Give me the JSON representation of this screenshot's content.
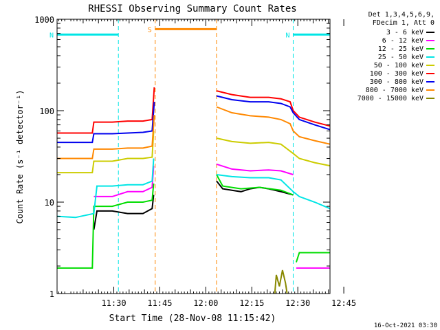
{
  "chart_data": {
    "type": "line",
    "title": "RHESSI Observing Summary Count Rates",
    "xlabel": "Start Time (28-Nov-08 11:15:42)",
    "ylabel": "Count Rate (s⁻¹ detector⁻¹)",
    "yscale": "log",
    "ylim": [
      1,
      1000
    ],
    "xlim_minutes": [
      11.5,
      100.5
    ],
    "x_tick_labels": [
      "11:30",
      "11:45",
      "12:00",
      "12:15",
      "12:30",
      "12:45"
    ],
    "x_tick_minutes": [
      30,
      45,
      60,
      75,
      90,
      105
    ],
    "y_tick_labels": [
      "1",
      "10",
      "100",
      "1000"
    ],
    "y_tick_values": [
      1,
      10,
      100,
      1000
    ],
    "footer_date": "16-Oct-2021 03:30",
    "legend": {
      "header": [
        "Det 1,3,4,5,6,9,",
        "FDecim 1, Att 0"
      ],
      "entries": [
        {
          "label": "3 - 6 keV",
          "color": "#000000"
        },
        {
          "label": "6 - 12 keV",
          "color": "#ff00ff"
        },
        {
          "label": "12 - 25 keV",
          "color": "#00dd00"
        },
        {
          "label": "25 - 50 keV",
          "color": "#00e5e5"
        },
        {
          "label": "50 - 100 keV",
          "color": "#cccc00"
        },
        {
          "label": "100 - 300 keV",
          "color": "#ff0000"
        },
        {
          "label": "300 - 800 keV",
          "color": "#0000ee"
        },
        {
          "label": "800 - 7000 keV",
          "color": "#ff8800"
        },
        {
          "label": "7000 - 15000 keV",
          "color": "#888800"
        }
      ]
    },
    "markers": [
      {
        "label": "N",
        "color": "#00e5e5",
        "start": 11.5,
        "end": 31.5,
        "level": 680
      },
      {
        "label": "N",
        "color": "#00e5e5",
        "start": 88.5,
        "end": 100.5,
        "level": 680
      },
      {
        "label": "S",
        "color": "#ff8800",
        "start": 43.5,
        "end": 63.5,
        "level": 780
      }
    ],
    "series": [
      {
        "name": "3 - 6 keV",
        "color": "#000000",
        "segments": [
          [
            [
              23.5,
              5.0
            ],
            [
              24.5,
              8.0
            ],
            [
              29.5,
              8.0
            ],
            [
              34.5,
              7.5
            ],
            [
              39.5,
              7.5
            ],
            [
              42.5,
              8.5
            ],
            [
              43.0,
              12.0
            ]
          ],
          [
            [
              63.5,
              17.0
            ],
            [
              65.5,
              14.0
            ],
            [
              68.5,
              13.5
            ],
            [
              71.5,
              13.0
            ],
            [
              74.5,
              14.0
            ],
            [
              77.5,
              14.5
            ],
            [
              80.5,
              14.0
            ],
            [
              84.5,
              13.0
            ],
            [
              88.5,
              12.0
            ]
          ]
        ]
      },
      {
        "name": "6 - 12 keV",
        "color": "#ff00ff",
        "segments": [
          [
            [
              23.5,
              11.5
            ],
            [
              29.5,
              11.5
            ],
            [
              34.5,
              13.0
            ],
            [
              39.5,
              13.0
            ],
            [
              42.5,
              14.5
            ],
            [
              43.0,
              25.0
            ]
          ],
          [
            [
              63.5,
              26.0
            ],
            [
              68.5,
              23.0
            ],
            [
              74.5,
              22.0
            ],
            [
              80.5,
              22.5
            ],
            [
              84.5,
              22.0
            ],
            [
              88.5,
              20.0
            ]
          ],
          [
            [
              89.5,
              1.9
            ],
            [
              100.5,
              1.9
            ]
          ]
        ]
      },
      {
        "name": "12 - 25 keV",
        "color": "#00dd00",
        "segments": [
          [
            [
              11.5,
              1.9
            ],
            [
              23.0,
              1.9
            ],
            [
              23.5,
              9.0
            ],
            [
              29.5,
              9.0
            ],
            [
              34.5,
              10.0
            ],
            [
              39.5,
              10.0
            ],
            [
              42.5,
              10.5
            ],
            [
              43.0,
              16.0
            ]
          ],
          [
            [
              63.5,
              20.0
            ],
            [
              65.5,
              15.0
            ],
            [
              71.5,
              14.0
            ],
            [
              77.5,
              14.5
            ],
            [
              84.5,
              13.5
            ],
            [
              88.5,
              12.0
            ]
          ],
          [
            [
              89.5,
              2.2
            ],
            [
              90.5,
              2.8
            ],
            [
              100.5,
              2.8
            ]
          ]
        ]
      },
      {
        "name": "25 - 50 keV",
        "color": "#00e5e5",
        "segments": [
          [
            [
              11.5,
              7.0
            ],
            [
              17.5,
              6.8
            ],
            [
              23.5,
              7.5
            ],
            [
              24.5,
              15.0
            ],
            [
              29.5,
              15.0
            ],
            [
              34.5,
              15.5
            ],
            [
              39.5,
              15.5
            ],
            [
              42.5,
              17.0
            ],
            [
              43.0,
              30.0
            ]
          ],
          [
            [
              63.5,
              20.0
            ],
            [
              68.5,
              19.0
            ],
            [
              74.5,
              18.5
            ],
            [
              80.5,
              18.5
            ],
            [
              84.5,
              17.5
            ],
            [
              88.5,
              13.0
            ],
            [
              90.5,
              11.5
            ],
            [
              95.5,
              10.0
            ],
            [
              100.5,
              8.5
            ]
          ]
        ]
      },
      {
        "name": "50 - 100 keV",
        "color": "#cccc00",
        "segments": [
          [
            [
              11.5,
              21.0
            ],
            [
              23.0,
              21.0
            ],
            [
              23.5,
              28.0
            ],
            [
              29.5,
              28.0
            ],
            [
              34.5,
              30.0
            ],
            [
              39.5,
              30.0
            ],
            [
              42.5,
              31.0
            ],
            [
              43.0,
              60.0
            ]
          ],
          [
            [
              63.5,
              50.0
            ],
            [
              68.5,
              46.0
            ],
            [
              74.5,
              44.0
            ],
            [
              80.5,
              45.0
            ],
            [
              84.5,
              43.0
            ],
            [
              88.5,
              34.0
            ],
            [
              90.5,
              30.0
            ],
            [
              95.5,
              27.0
            ],
            [
              100.5,
              25.0
            ]
          ]
        ]
      },
      {
        "name": "100 - 300 keV",
        "color": "#ff0000",
        "segments": [
          [
            [
              11.5,
              57.0
            ],
            [
              23.0,
              57.0
            ],
            [
              23.5,
              75.0
            ],
            [
              29.5,
              75.0
            ],
            [
              34.5,
              77.0
            ],
            [
              39.5,
              77.0
            ],
            [
              42.5,
              80.0
            ],
            [
              43.2,
              180.0
            ]
          ],
          [
            [
              63.5,
              165.0
            ],
            [
              68.5,
              150.0
            ],
            [
              74.5,
              140.0
            ],
            [
              80.5,
              140.0
            ],
            [
              84.5,
              135.0
            ],
            [
              87.5,
              125.0
            ],
            [
              88.5,
              100.0
            ],
            [
              90.5,
              85.0
            ],
            [
              95.5,
              75.0
            ],
            [
              100.5,
              68.0
            ]
          ]
        ]
      },
      {
        "name": "300 - 800 keV",
        "color": "#0000ee",
        "segments": [
          [
            [
              11.5,
              45.0
            ],
            [
              23.0,
              45.0
            ],
            [
              23.5,
              56.0
            ],
            [
              29.5,
              56.0
            ],
            [
              34.5,
              57.0
            ],
            [
              39.5,
              58.0
            ],
            [
              42.5,
              60.0
            ],
            [
              43.2,
              125.0
            ]
          ],
          [
            [
              63.5,
              145.0
            ],
            [
              68.5,
              132.0
            ],
            [
              74.5,
              125.0
            ],
            [
              80.5,
              125.0
            ],
            [
              84.5,
              120.0
            ],
            [
              87.5,
              110.0
            ],
            [
              88.5,
              95.0
            ],
            [
              90.5,
              80.0
            ],
            [
              95.5,
              70.0
            ],
            [
              100.5,
              62.0
            ]
          ]
        ]
      },
      {
        "name": "800 - 7000 keV",
        "color": "#ff8800",
        "segments": [
          [
            [
              11.5,
              30.0
            ],
            [
              23.0,
              30.0
            ],
            [
              23.5,
              38.0
            ],
            [
              29.5,
              38.0
            ],
            [
              34.5,
              39.0
            ],
            [
              39.5,
              39.0
            ],
            [
              42.5,
              41.0
            ],
            [
              43.2,
              90.0
            ]
          ],
          [
            [
              63.5,
              110.0
            ],
            [
              68.5,
              95.0
            ],
            [
              74.5,
              88.0
            ],
            [
              80.5,
              85.0
            ],
            [
              84.5,
              80.0
            ],
            [
              87.5,
              72.0
            ],
            [
              88.5,
              60.0
            ],
            [
              90.5,
              52.0
            ],
            [
              95.5,
              47.0
            ],
            [
              100.5,
              43.0
            ]
          ]
        ]
      },
      {
        "name": "7000 - 15000 keV",
        "color": "#888800",
        "segments": [
          [
            [
              82.5,
              1.0
            ],
            [
              83.0,
              1.6
            ],
            [
              84.0,
              1.2
            ],
            [
              85.0,
              1.8
            ],
            [
              86.0,
              1.3
            ],
            [
              86.5,
              1.0
            ]
          ]
        ]
      }
    ]
  }
}
